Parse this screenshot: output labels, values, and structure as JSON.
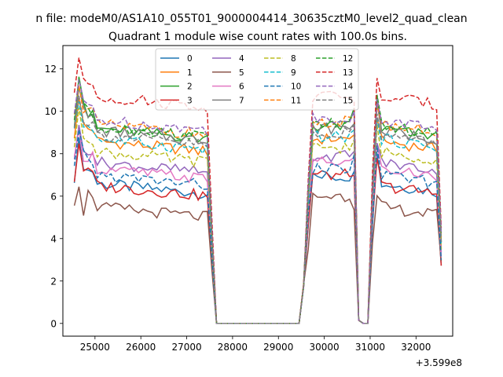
{
  "chart_data": {
    "type": "line",
    "title": "Quadrant 1 module wise count rates with 100.0s bins.",
    "suptitle": "n file: modeM0/AS1A10_055T01_9000004414_30635cztM0_level2_quad_clean",
    "xlabel": "",
    "ylabel": "",
    "x_offset_label": "+3.599e8",
    "xlim": [
      24300,
      32800
    ],
    "ylim": [
      -0.6,
      13.1
    ],
    "xticks": [
      25000,
      26000,
      27000,
      28000,
      29000,
      30000,
      31000,
      32000
    ],
    "xtick_labels": [
      "25000",
      "26000",
      "27000",
      "28000",
      "29000",
      "30000",
      "31000",
      "32000"
    ],
    "yticks": [
      0,
      2,
      4,
      6,
      8,
      10,
      12
    ],
    "ytick_labels": [
      "0",
      "2",
      "4",
      "6",
      "8",
      "10",
      "12"
    ],
    "grid": false,
    "legend_position": "upper center",
    "segments": [
      {
        "start": 24550,
        "end": 27550,
        "step": 100
      },
      {
        "start": 27650,
        "end": 29450,
        "step": 100
      },
      {
        "start": 29550,
        "end": 30650,
        "step": 100
      },
      {
        "start": 30750,
        "end": 30950,
        "step": 100
      },
      {
        "start": 31050,
        "end": 32550,
        "step": 100
      }
    ],
    "series": [
      {
        "name": "0",
        "color": "#1f77b4",
        "dash": "solid",
        "base": 6.6,
        "peak": 8.7,
        "dip": 5.9,
        "tail": 2.7
      },
      {
        "name": "1",
        "color": "#ff7f0e",
        "dash": "solid",
        "base": 8.6,
        "peak": 10.6,
        "dip": 7.7,
        "tail": 3.6
      },
      {
        "name": "2",
        "color": "#2ca02c",
        "dash": "solid",
        "base": 9.2,
        "peak": 11.7,
        "dip": 8.3,
        "tail": 3.9
      },
      {
        "name": "3",
        "color": "#d62728",
        "dash": "solid",
        "base": 6.5,
        "peak": 8.5,
        "dip": 6.0,
        "tail": 2.8
      },
      {
        "name": "4",
        "color": "#9467bd",
        "dash": "solid",
        "base": 7.6,
        "peak": 9.3,
        "dip": 6.9,
        "tail": 3.3
      },
      {
        "name": "5",
        "color": "#8c564b",
        "dash": "solid",
        "base": 5.5,
        "peak": 6.5,
        "dip": 5.0,
        "tail": 2.9
      },
      {
        "name": "6",
        "color": "#e377c2",
        "dash": "solid",
        "base": 7.3,
        "peak": 9.1,
        "dip": 6.6,
        "tail": 3.2
      },
      {
        "name": "7",
        "color": "#7f7f7f",
        "dash": "solid",
        "base": 9.1,
        "peak": 11.2,
        "dip": 8.2,
        "tail": 3.8
      },
      {
        "name": "8",
        "color": "#bcbd22",
        "dash": "dashed",
        "base": 8.1,
        "peak": 10.1,
        "dip": 7.3,
        "tail": 3.5
      },
      {
        "name": "9",
        "color": "#17becf",
        "dash": "dashed",
        "base": 8.7,
        "peak": 10.5,
        "dip": 7.8,
        "tail": 3.7
      },
      {
        "name": "10",
        "color": "#1f77b4",
        "dash": "dashed",
        "base": 7.0,
        "peak": 9.1,
        "dip": 6.3,
        "tail": 3.0
      },
      {
        "name": "11",
        "color": "#ff7f0e",
        "dash": "dashed",
        "base": 9.4,
        "peak": 11.3,
        "dip": 8.5,
        "tail": 4.0
      },
      {
        "name": "12",
        "color": "#2ca02c",
        "dash": "dashed",
        "base": 9.3,
        "peak": 11.6,
        "dip": 8.4,
        "tail": 4.1
      },
      {
        "name": "13",
        "color": "#d62728",
        "dash": "dashed",
        "base": 10.7,
        "peak": 12.5,
        "dip": 9.7,
        "tail": 4.5
      },
      {
        "name": "14",
        "color": "#9467bd",
        "dash": "dashed",
        "base": 9.6,
        "peak": 11.5,
        "dip": 8.7,
        "tail": 4.2
      },
      {
        "name": "15",
        "color": "#7f7f7f",
        "dash": "dashed",
        "base": 8.9,
        "peak": 10.8,
        "dip": 8.0,
        "tail": 3.8
      }
    ]
  }
}
